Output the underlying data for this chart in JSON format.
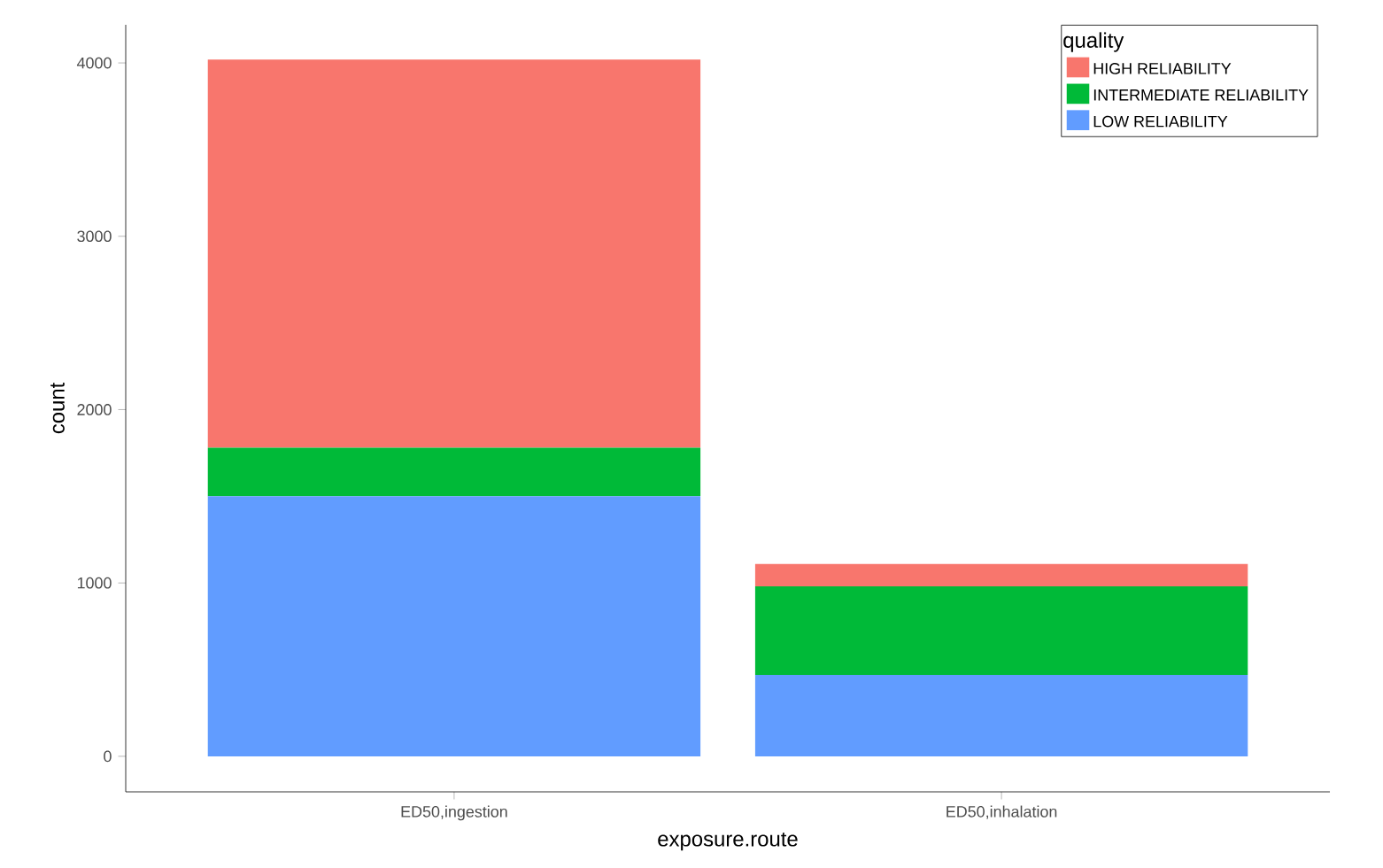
{
  "chart_data": {
    "type": "bar",
    "stacked": true,
    "xlabel": "exposure.route",
    "ylabel": "count",
    "legend_title": "quality",
    "categories": [
      "ED50,ingestion",
      "ED50,inhalation"
    ],
    "series": [
      {
        "name": "LOW RELIABILITY",
        "color": "#619cff",
        "values": [
          1500,
          470
        ]
      },
      {
        "name": "INTERMEDIATE RELIABILITY",
        "color": "#00ba38",
        "values": [
          280,
          510
        ]
      },
      {
        "name": "HIGH RELIABILITY",
        "color": "#f8766d",
        "values": [
          2240,
          130
        ]
      }
    ],
    "ylim": [
      -205,
      4220
    ],
    "yticks": [
      0,
      1000,
      2000,
      3000,
      4000
    ],
    "grid": false,
    "legend": "top right"
  }
}
